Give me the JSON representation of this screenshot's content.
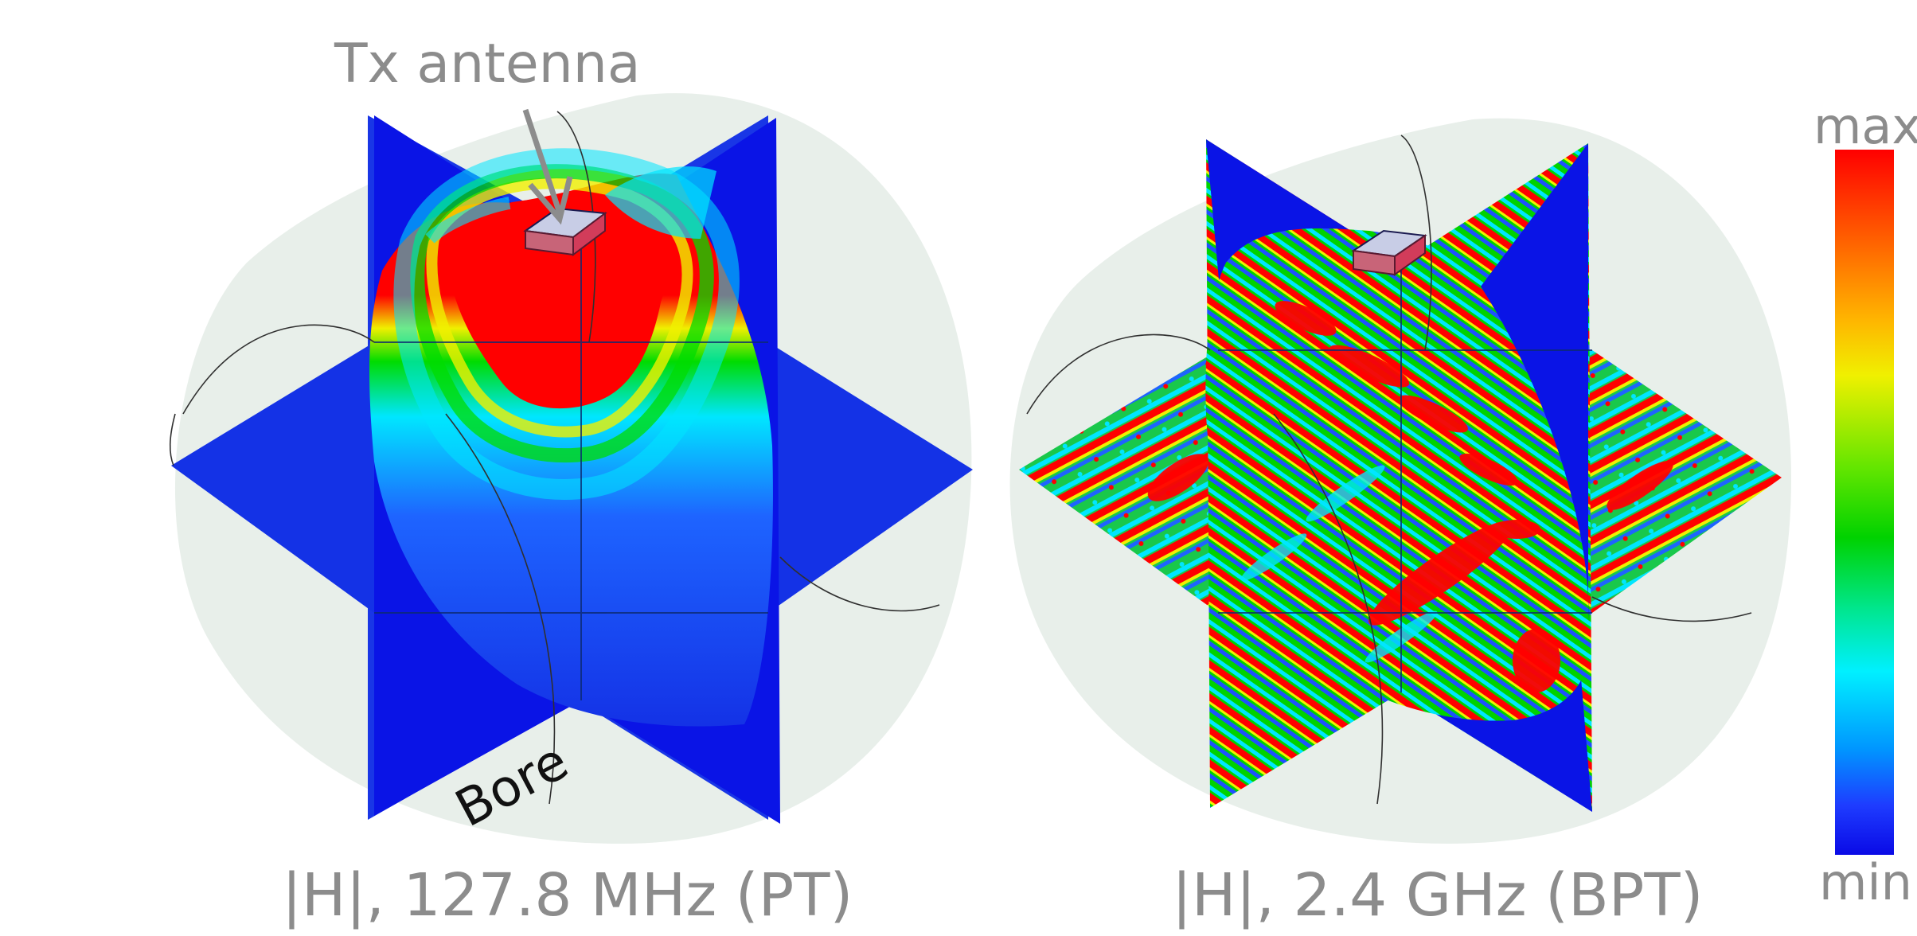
{
  "labels": {
    "tx_antenna": "Tx antenna",
    "bore": "Bore",
    "left_caption": "|H|, 127.8 MHz (PT)",
    "right_caption": "|H|, 2.4 GHz (BPT)",
    "colorbar_max": "max",
    "colorbar_min": "min"
  },
  "colors": {
    "background": "#ffffff",
    "bore_volume": "#e8efea",
    "field_min": "#0a14e6",
    "field_low": "#1e46ff",
    "field_mid_low": "#00e6ff",
    "field_mid": "#00dc00",
    "field_mid_high": "#f0f000",
    "field_high": "#ff8c00",
    "field_max": "#ff0000",
    "antenna": "#c8cde6",
    "annotation_gray": "#8c8c8c"
  }
}
